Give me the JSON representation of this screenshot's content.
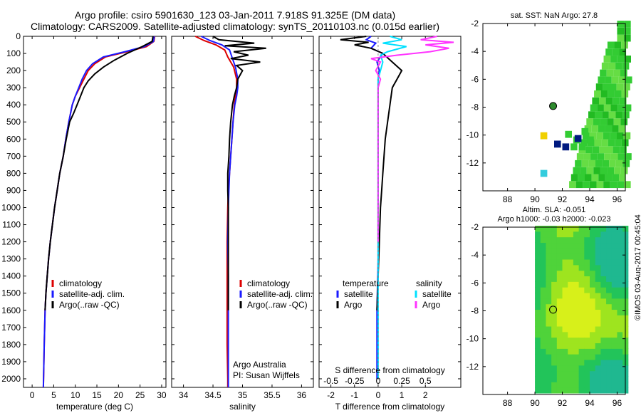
{
  "header": {
    "line1": "Argo profile: csiro 5901630_123 03-Jan-2011 7.918S 91.325E (DM data)",
    "line2": "Climatology: CARS2009. Satellite-adjusted climatology: synTS_20110103.nc (0.015d earlier)"
  },
  "credit": "©IMOS 03-Aug-2017 00:45:04",
  "colors": {
    "climatology": "#dd0000",
    "satellite": "#1a1aff",
    "argo": "#000000",
    "satellite_s": "#00e0ff",
    "argo_s": "#ff33ff"
  },
  "chart_data": [
    {
      "id": "temperature",
      "type": "line",
      "xlabel": "temperature (deg C)",
      "ylabel": "",
      "xlim": [
        -2,
        31
      ],
      "ylim": [
        2050,
        0
      ],
      "xticks": [
        0,
        5,
        10,
        15,
        20,
        25,
        30
      ],
      "yticks": [
        0,
        100,
        200,
        300,
        400,
        500,
        600,
        700,
        800,
        900,
        1000,
        1100,
        1200,
        1300,
        1400,
        1500,
        1600,
        1700,
        1800,
        1900,
        2000
      ],
      "legend": {
        "placement": "lower-right",
        "entries": [
          "climatology",
          "satellite-adj. clim.",
          "Argo(..raw -QC)"
        ]
      },
      "series": [
        {
          "name": "climatology",
          "color": "#dd0000",
          "x": [
            28.4,
            28.2,
            26.5,
            22,
            17,
            14.5,
            13,
            12,
            11,
            10,
            9.3,
            8.5,
            7.8,
            7.2,
            6.4,
            5.8,
            5.2,
            4.7,
            4.2,
            3.8,
            3.5,
            3.2,
            3,
            2.8,
            2.6
          ],
          "y": [
            0,
            30,
            60,
            90,
            120,
            160,
            200,
            250,
            300,
            350,
            400,
            500,
            600,
            700,
            800,
            900,
            1000,
            1100,
            1200,
            1300,
            1400,
            1500,
            1600,
            1800,
            2050
          ]
        },
        {
          "name": "satellite-adj. clim.",
          "color": "#1a1aff",
          "x": [
            28.3,
            28.1,
            26,
            21.5,
            16.5,
            14,
            12.6,
            11.6,
            10.8,
            10,
            9.3,
            8.5,
            7.8,
            7.2,
            6.4,
            5.8,
            5.2,
            4.7,
            4.2,
            3.8,
            3.5,
            3.2,
            3,
            2.8,
            2.6
          ],
          "y": [
            0,
            30,
            60,
            90,
            120,
            160,
            200,
            250,
            300,
            350,
            400,
            500,
            600,
            700,
            800,
            900,
            1000,
            1100,
            1200,
            1300,
            1400,
            1500,
            1600,
            1800,
            2050
          ]
        },
        {
          "name": "Argo(..raw -QC)",
          "color": "#000000",
          "x": [
            28,
            27.8,
            25.5,
            22,
            19,
            16.5,
            14.5,
            13,
            12,
            11.2,
            10.4,
            9.6,
            8.7,
            7.9,
            7.2,
            6.4,
            5.8,
            5.2,
            4.7,
            4.2,
            3.8,
            3.5,
            3.2,
            3
          ],
          "y": [
            0,
            30,
            60,
            100,
            140,
            180,
            220,
            260,
            300,
            350,
            400,
            450,
            500,
            600,
            700,
            800,
            900,
            1000,
            1100,
            1200,
            1300,
            1400,
            1500,
            1600
          ]
        }
      ]
    },
    {
      "id": "salinity",
      "type": "line",
      "xlabel": "salinity",
      "ylabel": "",
      "xlim": [
        33.8,
        36.2
      ],
      "ylim": [
        2050,
        0
      ],
      "xticks": [
        34,
        34.5,
        35,
        35.5,
        36
      ],
      "legend": {
        "placement": "lower-right",
        "entries": [
          "climatology",
          "satellite-adj. clim.",
          "Argo(..raw -QC)"
        ]
      },
      "annotation": [
        "Argo Australia",
        "PI: Susan Wijffels"
      ],
      "series": [
        {
          "name": "climatology",
          "color": "#dd0000",
          "x": [
            34.2,
            34.35,
            34.55,
            34.7,
            34.75,
            34.85,
            34.9,
            34.9,
            34.88,
            34.86,
            34.84,
            34.82,
            34.8,
            34.78,
            34.76,
            34.75,
            34.74,
            34.74,
            34.74,
            34.74,
            34.75,
            34.75
          ],
          "y": [
            0,
            25,
            50,
            80,
            120,
            180,
            250,
            300,
            350,
            400,
            500,
            600,
            700,
            800,
            900,
            1000,
            1200,
            1400,
            1600,
            1800,
            2000,
            2050
          ]
        },
        {
          "name": "satellite-adj. clim.",
          "color": "#1a1aff",
          "x": [
            34.3,
            34.45,
            34.65,
            34.78,
            34.82,
            34.88,
            34.92,
            34.92,
            34.9,
            34.87,
            34.84,
            34.82,
            34.8,
            34.78,
            34.77,
            34.76,
            34.75,
            34.76,
            34.76,
            34.76,
            34.76,
            34.76
          ],
          "y": [
            0,
            25,
            50,
            80,
            120,
            180,
            250,
            300,
            350,
            400,
            500,
            600,
            700,
            800,
            900,
            1000,
            1200,
            1400,
            1600,
            1800,
            2000,
            2050
          ]
        },
        {
          "name": "Argo(..raw -QC)",
          "color": "#000000",
          "x": [
            34.5,
            34.6,
            35.2,
            34.7,
            35.4,
            34.85,
            35.1,
            34.8,
            35.3,
            34.9,
            35.0,
            34.92,
            34.9,
            34.86,
            34.83,
            34.8,
            34.78,
            34.77,
            34.75,
            34.75,
            34.76,
            34.76,
            34.76,
            34.76,
            34.76,
            34.76,
            34.76
          ],
          "y": [
            0,
            20,
            40,
            55,
            70,
            90,
            110,
            130,
            150,
            170,
            200,
            250,
            300,
            350,
            400,
            500,
            600,
            700,
            800,
            900,
            1000,
            1100,
            1200,
            1300,
            1400,
            1500,
            1600
          ]
        }
      ]
    },
    {
      "id": "difference",
      "type": "line",
      "xlabel": "T difference from climatology",
      "top_axis_label": "S difference from climatology",
      "xlim": [
        -2.5,
        3.5
      ],
      "ylim": [
        2050,
        0
      ],
      "xticks": [
        -2,
        -1,
        0,
        1,
        2
      ],
      "top_ticks": [
        "-0.5",
        "-0.25",
        "0",
        "0.25",
        "0.5"
      ],
      "top_tick_values": [
        -2,
        -1,
        0,
        1,
        2
      ],
      "legend": {
        "placement": "lower-right",
        "groups": [
          {
            "heading": "temperature",
            "entries": [
              "satellite",
              "Argo"
            ],
            "colors": [
              "#1a1aff",
              "#000000"
            ]
          },
          {
            "heading": "salinity",
            "entries": [
              "satellite",
              "Argo"
            ],
            "colors": [
              "#00e0ff",
              "#ff33ff"
            ]
          }
        ]
      },
      "series": [
        {
          "name": "T satellite",
          "color": "#1a1aff",
          "x": [
            -0.3,
            -0.5,
            -0.1,
            -0.3,
            0.2,
            -0.05,
            0.05,
            0,
            0,
            0,
            0,
            0,
            0,
            0,
            -0.05,
            -0.05
          ],
          "y": [
            0,
            20,
            40,
            70,
            100,
            150,
            200,
            250,
            300,
            400,
            500,
            700,
            1000,
            1300,
            1600,
            2000
          ]
        },
        {
          "name": "T Argo",
          "color": "#000000",
          "x": [
            -0.5,
            -1.6,
            -0.4,
            -1.0,
            -0.3,
            0.2,
            0.6,
            1.0,
            0.8,
            0.6,
            0.5,
            0.4,
            0.3,
            0.25,
            0.2,
            0.15,
            0.1,
            0.05,
            0,
            -0.05
          ],
          "y": [
            0,
            20,
            35,
            50,
            70,
            100,
            150,
            200,
            250,
            300,
            400,
            500,
            600,
            700,
            800,
            900,
            1000,
            1200,
            1400,
            1600
          ]
        },
        {
          "name": "S satellite",
          "color": "#00e0ff",
          "x": [
            0.5,
            1.0,
            0.2,
            1.2,
            0.4,
            0.1,
            0.2,
            0.1,
            0,
            0,
            0,
            0,
            0,
            0,
            0,
            0,
            0
          ],
          "y": [
            0,
            20,
            40,
            60,
            90,
            110,
            150,
            200,
            250,
            300,
            400,
            500,
            700,
            1000,
            1300,
            1600,
            2000
          ]
        },
        {
          "name": "S Argo",
          "color": "#ff33ff",
          "x": [
            2.5,
            1.8,
            3.2,
            2.0,
            3.0,
            2.2,
            0.8,
            -0.3,
            0.1,
            -0.1,
            0.1,
            0,
            0,
            0,
            0,
            0
          ],
          "y": [
            0,
            20,
            35,
            50,
            70,
            90,
            110,
            130,
            150,
            200,
            250,
            300,
            400,
            600,
            900,
            1200
          ]
        }
      ]
    },
    {
      "id": "sst-map",
      "type": "heatmap",
      "title": "sat. SST: NaN Argo: 27.8",
      "xlim": [
        86.2,
        96.6
      ],
      "ylim": [
        -14,
        -2
      ],
      "xticks": [
        88,
        90,
        92,
        94,
        96
      ],
      "yticks": [
        -2,
        -4,
        -6,
        -8,
        -10,
        -12
      ],
      "argo_position": [
        91.325,
        -7.918
      ]
    },
    {
      "id": "sla-map",
      "type": "heatmap",
      "title": "Altim. SLA: -0.051",
      "subtitle": "Argo h1000: -0.03 h2000: -0.023",
      "xlim": [
        86.2,
        96.6
      ],
      "ylim": [
        -14,
        -2
      ],
      "xticks": [
        88,
        90,
        92,
        94,
        96
      ],
      "yticks": [
        -2,
        -4,
        -6,
        -8,
        -10,
        -12
      ],
      "argo_position": [
        91.325,
        -7.918
      ]
    }
  ]
}
